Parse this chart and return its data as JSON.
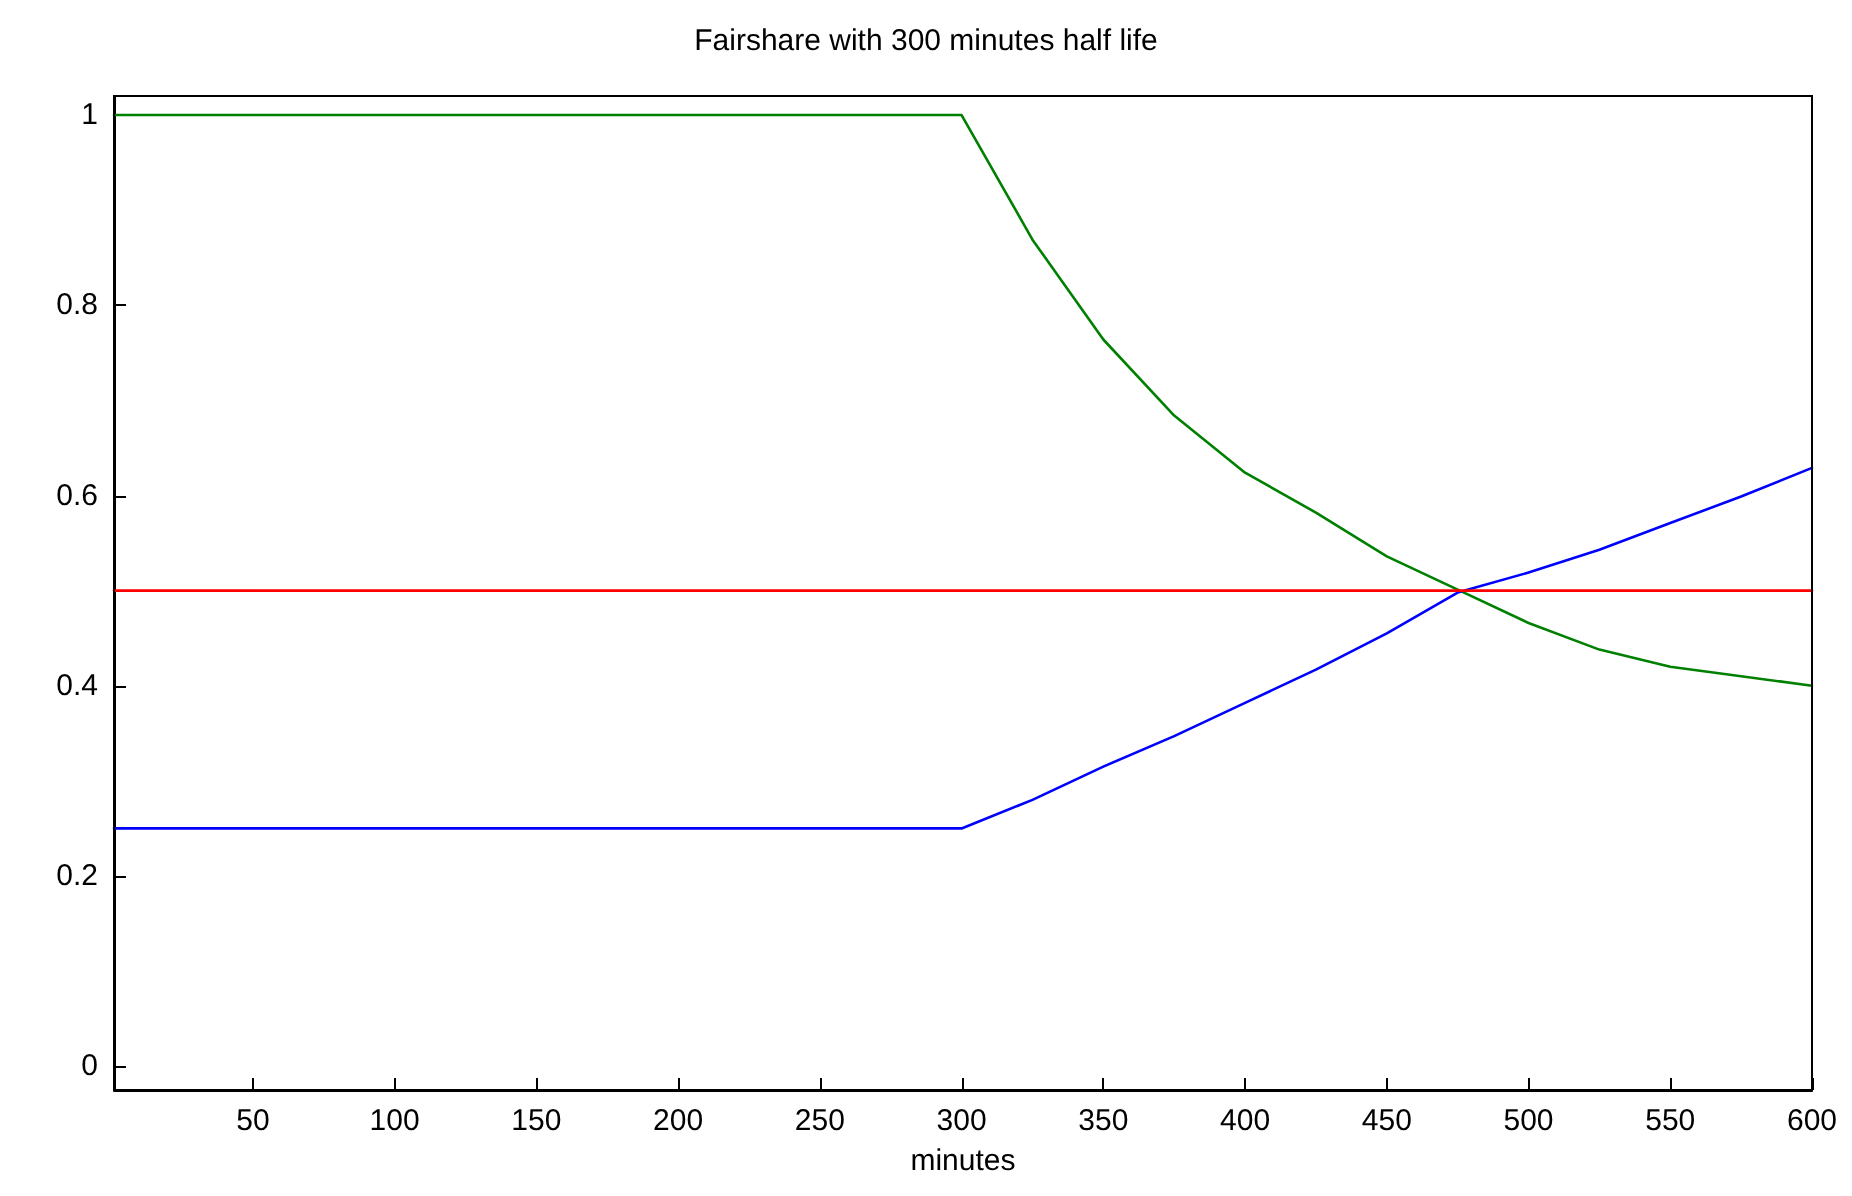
{
  "chart_data": {
    "type": "line",
    "title": "Fairshare with 300 minutes half life",
    "xlabel": "minutes",
    "xlim": [
      1,
      600
    ],
    "ylim": [
      -0.025,
      1.02
    ],
    "xticks": [
      50,
      100,
      150,
      200,
      250,
      300,
      350,
      400,
      450,
      500,
      550,
      600
    ],
    "yticks": [
      0,
      0.2,
      0.4,
      0.6,
      0.8,
      1
    ],
    "grid": false,
    "marker": "none",
    "line_style": "solid",
    "series": [
      {
        "color": "#008000",
        "x": [
          1,
          300,
          325,
          350,
          375,
          400,
          425,
          450,
          475,
          500,
          525,
          550,
          575,
          600
        ],
        "values": [
          1,
          1,
          0.869,
          0.764,
          0.684,
          0.624,
          0.582,
          0.536,
          0.501,
          0.466,
          0.438,
          0.42,
          0.41,
          0.4
        ]
      },
      {
        "color": "#0000ff",
        "x": [
          1,
          300,
          325,
          350,
          375,
          400,
          425,
          450,
          475,
          500,
          525,
          550,
          575,
          600
        ],
        "values": [
          0.25,
          0.25,
          0.28,
          0.315,
          0.347,
          0.382,
          0.417,
          0.455,
          0.498,
          0.519,
          0.543,
          0.571,
          0.599,
          0.629
        ]
      },
      {
        "color": "#ff0000",
        "x": [
          1,
          600
        ],
        "values": [
          0.5,
          0.5
        ]
      }
    ]
  }
}
